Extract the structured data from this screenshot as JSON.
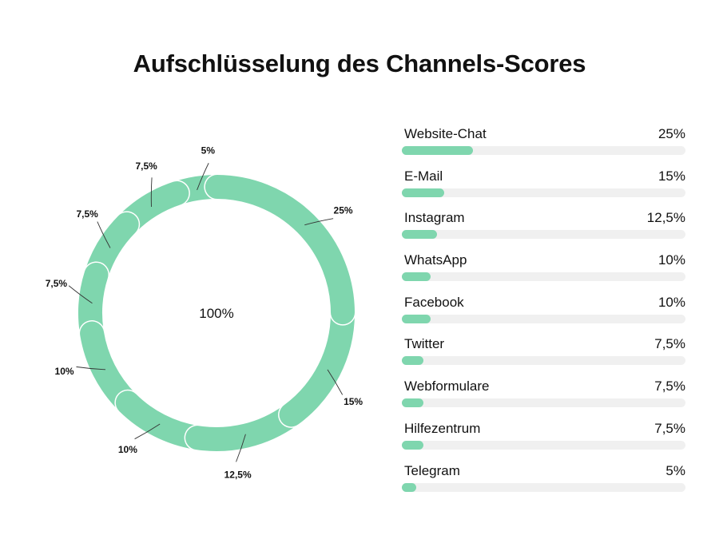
{
  "chart_data": [
    {
      "type": "pie",
      "title": "Aufschlüsselung des Channels-Scores",
      "center_label": "100%",
      "slices": [
        {
          "label": "25%",
          "value": 25
        },
        {
          "label": "15%",
          "value": 15
        },
        {
          "label": "12,5%",
          "value": 12.5
        },
        {
          "label": "10%",
          "value": 10
        },
        {
          "label": "10%",
          "value": 10
        },
        {
          "label": "7,5%",
          "value": 7.5
        },
        {
          "label": "7,5%",
          "value": 7.5
        },
        {
          "label": "7,5%",
          "value": 7.5
        },
        {
          "label": "5%",
          "value": 5
        }
      ],
      "color": "#7fd6ae"
    },
    {
      "type": "bar",
      "orientation": "horizontal",
      "categories": [
        "Website-Chat",
        "E-Mail",
        "Instagram",
        "WhatsApp",
        "Facebook",
        "Twitter",
        "Webformulare",
        "Hilfezentrum",
        "Telegram"
      ],
      "values": [
        25,
        15,
        12.5,
        10,
        10,
        7.5,
        7.5,
        7.5,
        5
      ],
      "value_labels": [
        "25%",
        "15%",
        "12,5%",
        "10%",
        "10%",
        "7,5%",
        "7,5%",
        "7,5%",
        "5%"
      ],
      "xlim": [
        0,
        100
      ],
      "color": "#7fd6ae",
      "track_color": "#f0f0f0"
    }
  ]
}
